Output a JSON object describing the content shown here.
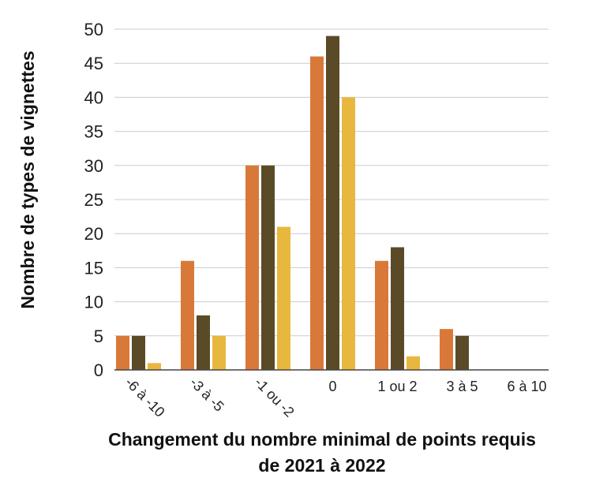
{
  "chart_data": {
    "type": "bar",
    "title": "",
    "ylabel": "Nombre de types de vignettes",
    "xlabel_line1": "Changement du nombre minimal de points requis",
    "xlabel_line2": "de 2021 à 2022",
    "ylim": [
      0,
      50
    ],
    "yticks": [
      0,
      5,
      10,
      15,
      20,
      25,
      30,
      35,
      40,
      45,
      50
    ],
    "grid": true,
    "categories": [
      "-6 à -10",
      "-3 à -5",
      "-1 ou -2",
      "0",
      "1 ou 2",
      "3 à 5",
      "6 à 10"
    ],
    "series": [
      {
        "color": "#d8793a",
        "values": [
          5,
          16,
          30,
          46,
          16,
          6,
          0
        ]
      },
      {
        "color": "#5a4a28",
        "values": [
          5,
          8,
          30,
          49,
          18,
          5,
          0
        ]
      },
      {
        "color": "#e8b83e",
        "values": [
          1,
          5,
          21,
          40,
          2,
          0,
          0
        ]
      }
    ]
  }
}
